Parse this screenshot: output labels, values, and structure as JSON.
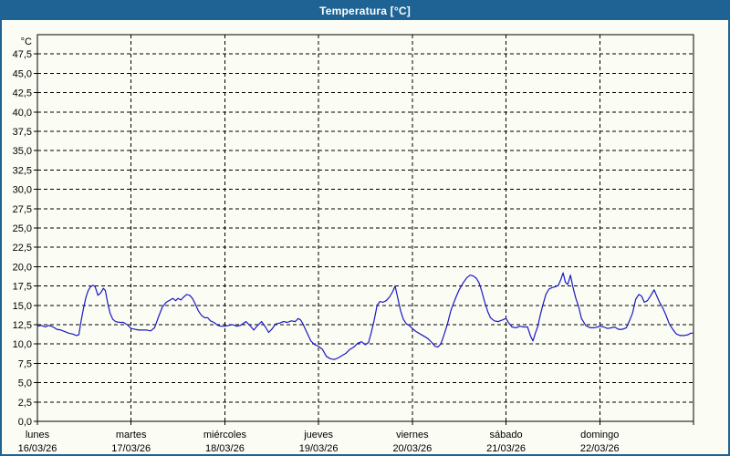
{
  "window": {
    "title": "Temperatura [°C]"
  },
  "colors": {
    "titlebar": "#1e6394",
    "window_border": "#1e6394",
    "background": "#fbfcf4",
    "line": "#1a1ac0",
    "grid": "#000000",
    "text": "#000000"
  },
  "chart_data": {
    "type": "line",
    "title": "Temperatura [°C]",
    "y_unit": "°C",
    "ylabel": "Temperatura",
    "ylim": [
      0,
      50
    ],
    "ytick_step": 2.5,
    "ytick_labels": [
      "0,0",
      "2,5",
      "5,0",
      "7,5",
      "10,0",
      "12,5",
      "15,0",
      "17,5",
      "20,0",
      "22,5",
      "25,0",
      "27,5",
      "30,0",
      "32,5",
      "35,0",
      "37,5",
      "40,0",
      "42,5",
      "45,0",
      "47,5"
    ],
    "grid": "dashed",
    "legend": "none",
    "x_unit": "hours",
    "xlim": [
      0,
      168
    ],
    "days": [
      {
        "name": "lunes",
        "date": "16/03/26"
      },
      {
        "name": "martes",
        "date": "17/03/26"
      },
      {
        "name": "miércoles",
        "date": "18/03/26"
      },
      {
        "name": "jueves",
        "date": "19/03/26"
      },
      {
        "name": "viernes",
        "date": "20/03/26"
      },
      {
        "name": "sábado",
        "date": "21/03/26"
      },
      {
        "name": "domingo",
        "date": "22/03/26"
      }
    ],
    "series": [
      {
        "name": "Temperatura [°C]",
        "color": "#1a1ac0",
        "points": [
          [
            0,
            12.3
          ],
          [
            1,
            12.4
          ],
          [
            2,
            12.2
          ],
          [
            3,
            12.4
          ],
          [
            4,
            12.2
          ],
          [
            5,
            11.9
          ],
          [
            6,
            11.8
          ],
          [
            7,
            11.6
          ],
          [
            8,
            11.4
          ],
          [
            9,
            11.3
          ],
          [
            10,
            11.1
          ],
          [
            10.6,
            11.2
          ],
          [
            11.2,
            13.0
          ],
          [
            11.8,
            14.6
          ],
          [
            12.4,
            16.0
          ],
          [
            13,
            16.9
          ],
          [
            13.6,
            17.4
          ],
          [
            14.2,
            17.6
          ],
          [
            14.8,
            17.4
          ],
          [
            15.5,
            16.3
          ],
          [
            16.2,
            16.6
          ],
          [
            16.9,
            17.2
          ],
          [
            17.4,
            16.9
          ],
          [
            18,
            15.3
          ],
          [
            18.6,
            14.0
          ],
          [
            19.3,
            13.2
          ],
          [
            20,
            12.9
          ],
          [
            21,
            12.8
          ],
          [
            22,
            12.8
          ],
          [
            23,
            12.5
          ],
          [
            24,
            12.0
          ],
          [
            25,
            11.9
          ],
          [
            26,
            11.8
          ],
          [
            27,
            11.8
          ],
          [
            28,
            11.8
          ],
          [
            29,
            11.7
          ],
          [
            30,
            12.1
          ],
          [
            31,
            13.5
          ],
          [
            32,
            14.8
          ],
          [
            33,
            15.4
          ],
          [
            34,
            15.7
          ],
          [
            34.7,
            15.9
          ],
          [
            35.4,
            15.6
          ],
          [
            36,
            15.9
          ],
          [
            36.7,
            15.7
          ],
          [
            37.5,
            16.1
          ],
          [
            38.2,
            16.4
          ],
          [
            39,
            16.3
          ],
          [
            39.7,
            15.9
          ],
          [
            40.4,
            15.2
          ],
          [
            41.2,
            14.3
          ],
          [
            42,
            13.7
          ],
          [
            42.8,
            13.4
          ],
          [
            43.6,
            13.4
          ],
          [
            44.3,
            13.0
          ],
          [
            45.2,
            12.8
          ],
          [
            46.2,
            12.4
          ],
          [
            47,
            12.3
          ],
          [
            48,
            12.3
          ],
          [
            49,
            12.4
          ],
          [
            50,
            12.5
          ],
          [
            51,
            12.3
          ],
          [
            52,
            12.4
          ],
          [
            53.4,
            12.9
          ],
          [
            54.4,
            12.4
          ],
          [
            55.4,
            11.8
          ],
          [
            56.4,
            12.4
          ],
          [
            57.4,
            12.9
          ],
          [
            58.4,
            12.2
          ],
          [
            59.2,
            11.5
          ],
          [
            60,
            11.9
          ],
          [
            61,
            12.6
          ],
          [
            62,
            12.7
          ],
          [
            63,
            12.9
          ],
          [
            64,
            12.8
          ],
          [
            65,
            13.0
          ],
          [
            66,
            12.9
          ],
          [
            66.8,
            13.3
          ],
          [
            67.4,
            13.1
          ],
          [
            68,
            12.6
          ],
          [
            69,
            11.5
          ],
          [
            70,
            10.4
          ],
          [
            71,
            9.9
          ],
          [
            72,
            9.7
          ],
          [
            73,
            9.3
          ],
          [
            74,
            8.4
          ],
          [
            75,
            8.1
          ],
          [
            76,
            8.0
          ],
          [
            77,
            8.2
          ],
          [
            78,
            8.5
          ],
          [
            79,
            8.8
          ],
          [
            80,
            9.3
          ],
          [
            81,
            9.6
          ],
          [
            82,
            10.1
          ],
          [
            83,
            10.3
          ],
          [
            84,
            9.9
          ],
          [
            84.8,
            10.2
          ],
          [
            85.5,
            11.5
          ],
          [
            86.2,
            13.0
          ],
          [
            87,
            15.0
          ],
          [
            87.7,
            15.5
          ],
          [
            88.5,
            15.4
          ],
          [
            89.3,
            15.6
          ],
          [
            90.2,
            16.1
          ],
          [
            91,
            16.8
          ],
          [
            91.6,
            17.5
          ],
          [
            92.3,
            15.9
          ],
          [
            93,
            14.3
          ],
          [
            93.7,
            13.2
          ],
          [
            94.5,
            12.6
          ],
          [
            95.2,
            12.4
          ],
          [
            96,
            12.0
          ],
          [
            97,
            11.6
          ],
          [
            98,
            11.3
          ],
          [
            99,
            11.0
          ],
          [
            100,
            10.7
          ],
          [
            101,
            10.2
          ],
          [
            101.8,
            9.7
          ],
          [
            102.5,
            9.6
          ],
          [
            103.3,
            10.0
          ],
          [
            104,
            11.0
          ],
          [
            105,
            12.6
          ],
          [
            105.8,
            14.2
          ],
          [
            106.5,
            15.2
          ],
          [
            107.3,
            16.2
          ],
          [
            108,
            17.0
          ],
          [
            109,
            17.9
          ],
          [
            110,
            18.6
          ],
          [
            110.8,
            18.9
          ],
          [
            111.6,
            18.8
          ],
          [
            112.4,
            18.5
          ],
          [
            113.1,
            17.9
          ],
          [
            113.8,
            16.8
          ],
          [
            114.5,
            15.5
          ],
          [
            115.3,
            14.2
          ],
          [
            116,
            13.4
          ],
          [
            117,
            13.0
          ],
          [
            118,
            12.9
          ],
          [
            119,
            13.1
          ],
          [
            120,
            13.3
          ],
          [
            120.7,
            12.7
          ],
          [
            121.5,
            12.2
          ],
          [
            122.5,
            12.1
          ],
          [
            123.5,
            12.3
          ],
          [
            124.5,
            12.2
          ],
          [
            125.5,
            12.2
          ],
          [
            126.3,
            11.0
          ],
          [
            126.9,
            10.4
          ],
          [
            127.5,
            11.4
          ],
          [
            128.1,
            12.2
          ],
          [
            128.7,
            13.6
          ],
          [
            129.4,
            15.0
          ],
          [
            130.2,
            16.4
          ],
          [
            131,
            17.1
          ],
          [
            131.8,
            17.3
          ],
          [
            132.6,
            17.4
          ],
          [
            133.4,
            17.6
          ],
          [
            134,
            18.3
          ],
          [
            134.6,
            19.2
          ],
          [
            135.2,
            18.0
          ],
          [
            135.8,
            17.7
          ],
          [
            136.5,
            18.9
          ],
          [
            137.1,
            17.4
          ],
          [
            137.8,
            16.0
          ],
          [
            138.6,
            14.8
          ],
          [
            139.3,
            13.3
          ],
          [
            140.4,
            12.4
          ],
          [
            141.5,
            12.1
          ],
          [
            142.5,
            12.1
          ],
          [
            143.5,
            12.2
          ],
          [
            144,
            12.3
          ],
          [
            145,
            12.2
          ],
          [
            146,
            12.0
          ],
          [
            147,
            12.1
          ],
          [
            147.8,
            12.2
          ],
          [
            148.8,
            11.9
          ],
          [
            149.8,
            11.9
          ],
          [
            150.8,
            12.1
          ],
          [
            151.6,
            13.0
          ],
          [
            152.4,
            14.0
          ],
          [
            153.2,
            15.8
          ],
          [
            154,
            16.4
          ],
          [
            154.7,
            16.2
          ],
          [
            155.4,
            15.4
          ],
          [
            156.2,
            15.6
          ],
          [
            157,
            16.2
          ],
          [
            157.9,
            17.0
          ],
          [
            158.6,
            16.2
          ],
          [
            159.3,
            15.4
          ],
          [
            160,
            14.8
          ],
          [
            160.9,
            13.8
          ],
          [
            161.8,
            12.6
          ],
          [
            162.7,
            11.9
          ],
          [
            163.6,
            11.3
          ],
          [
            164.6,
            11.1
          ],
          [
            165.6,
            11.1
          ],
          [
            166.6,
            11.2
          ],
          [
            167.3,
            11.4
          ],
          [
            168,
            11.4
          ]
        ]
      }
    ]
  }
}
